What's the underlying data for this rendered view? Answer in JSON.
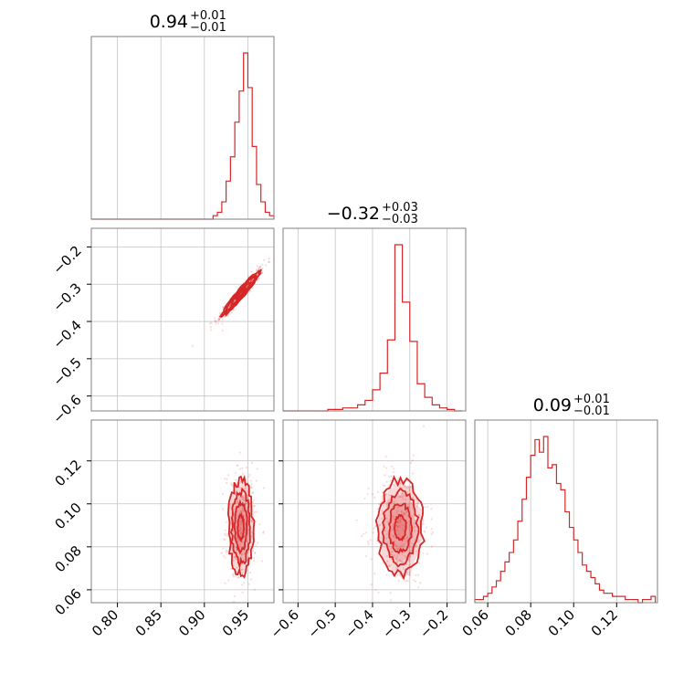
{
  "colors": {
    "accent": "#d62728",
    "grid": "#c4c4c4",
    "frame": "#808080",
    "fill_alpha": 0.3
  },
  "chart_data": {
    "type": "corner",
    "grid": true,
    "parameters": [
      {
        "range": [
          0.77,
          0.98
        ],
        "ticks": [
          0.8,
          0.85,
          0.9,
          0.95
        ],
        "tick_labels": [
          "0.80",
          "0.85",
          "0.90",
          "0.95"
        ],
        "title_value": "0.94",
        "title_plus": "+0.01",
        "title_minus": "−0.01"
      },
      {
        "range": [
          -0.64,
          -0.15
        ],
        "ticks": [
          -0.6,
          -0.5,
          -0.4,
          -0.3,
          -0.2
        ],
        "tick_labels": [
          "−0.6",
          "−0.5",
          "−0.4",
          "−0.3",
          "−0.2"
        ],
        "title_value": "−0.32",
        "title_plus": "+0.03",
        "title_minus": "−0.03"
      },
      {
        "range": [
          0.054,
          0.139
        ],
        "ticks": [
          0.06,
          0.08,
          0.1,
          0.12
        ],
        "tick_labels": [
          "0.06",
          "0.08",
          "0.10",
          "0.12"
        ],
        "title_value": "0.09",
        "title_plus": "+0.01",
        "title_minus": "−0.01"
      }
    ],
    "marginals": [
      {
        "param": 0,
        "edges": [
          0.77,
          0.91,
          0.915,
          0.92,
          0.925,
          0.93,
          0.935,
          0.94,
          0.945,
          0.95,
          0.955,
          0.96,
          0.965,
          0.97,
          0.975,
          0.98
        ],
        "counts": [
          0,
          1,
          2,
          5,
          11,
          18,
          28,
          37,
          48,
          38,
          21,
          10,
          5,
          2,
          1
        ]
      },
      {
        "param": 1,
        "edges": [
          -0.64,
          -0.6,
          -0.58,
          -0.56,
          -0.54,
          -0.52,
          -0.5,
          -0.48,
          -0.46,
          -0.44,
          -0.42,
          -0.4,
          -0.38,
          -0.36,
          -0.34,
          -0.32,
          -0.3,
          -0.28,
          -0.26,
          -0.24,
          -0.22,
          -0.2,
          -0.18,
          -0.16
        ],
        "counts": [
          0,
          0,
          0,
          0,
          0,
          1,
          1,
          2,
          2,
          4,
          7,
          14,
          25,
          47,
          110,
          72,
          46,
          18,
          9,
          4,
          2,
          1,
          0
        ]
      },
      {
        "param": 2,
        "edges": [
          0.054,
          0.056,
          0.058,
          0.06,
          0.062,
          0.064,
          0.066,
          0.068,
          0.07,
          0.072,
          0.074,
          0.076,
          0.078,
          0.08,
          0.082,
          0.084,
          0.086,
          0.088,
          0.09,
          0.092,
          0.094,
          0.096,
          0.098,
          0.1,
          0.102,
          0.104,
          0.106,
          0.108,
          0.11,
          0.112,
          0.114,
          0.116,
          0.118,
          0.12,
          0.122,
          0.124,
          0.126,
          0.128,
          0.13,
          0.132,
          0.134,
          0.136,
          0.138
        ],
        "counts": [
          1,
          1,
          2,
          3,
          5,
          7,
          10,
          13,
          16,
          20,
          26,
          33,
          40,
          47,
          52,
          48,
          53,
          43,
          44,
          38,
          36,
          29,
          24,
          20,
          16,
          12,
          10,
          8,
          6,
          4,
          3,
          3,
          2,
          2,
          2,
          1,
          1,
          1,
          0,
          1,
          1,
          2
        ]
      }
    ],
    "pairs": [
      {
        "x_param": 0,
        "y_param": 1,
        "center": [
          0.942,
          -0.325
        ],
        "sigma": [
          0.011,
          0.03
        ],
        "correlation": 0.96
      },
      {
        "x_param": 0,
        "y_param": 2,
        "center": [
          0.942,
          0.089
        ],
        "sigma": [
          0.007,
          0.011
        ],
        "correlation": 0.0
      },
      {
        "x_param": 1,
        "y_param": 2,
        "center": [
          -0.325,
          0.089
        ],
        "sigma": [
          0.03,
          0.011
        ],
        "correlation": 0.0
      }
    ]
  }
}
